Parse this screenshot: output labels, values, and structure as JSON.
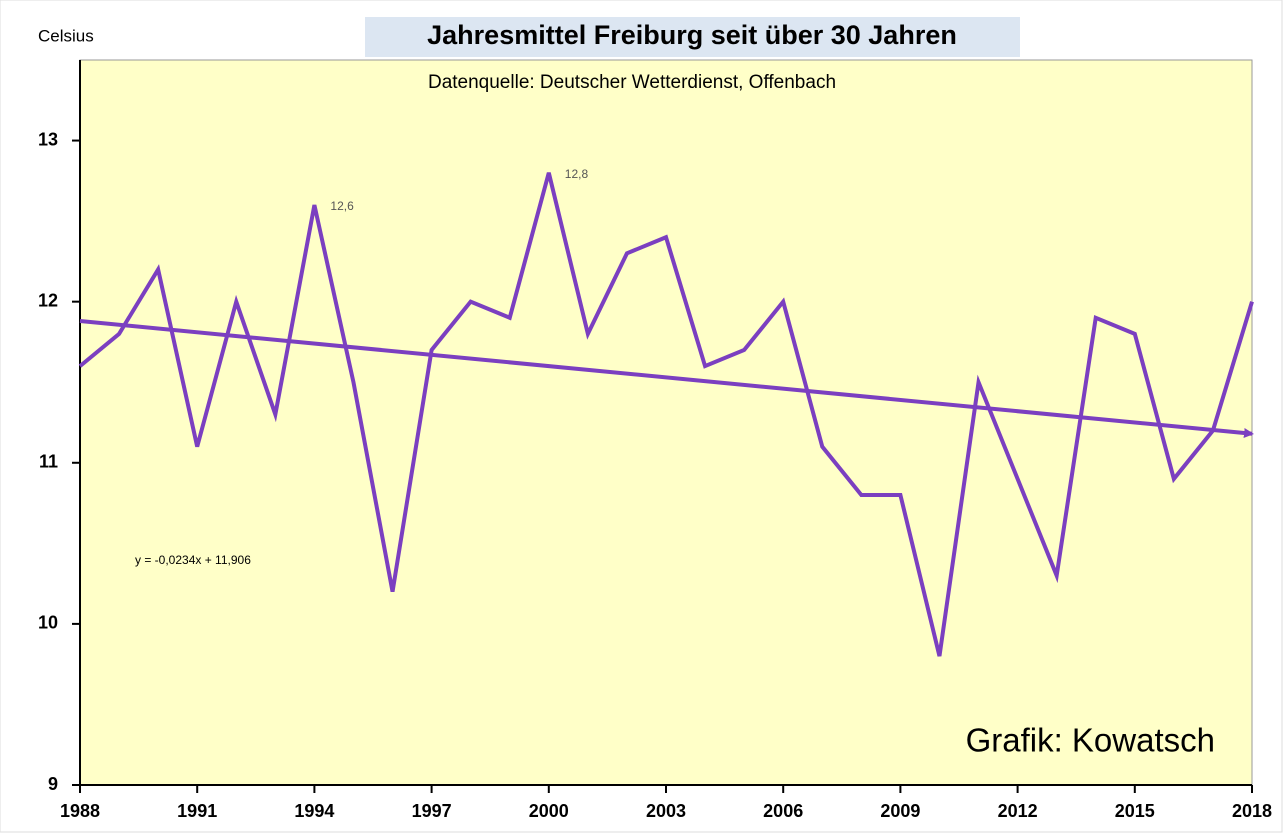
{
  "chart_data": {
    "type": "line",
    "title": "Jahresmittel Freiburg seit über 30 Jahren",
    "subtitle": "Datenquelle: Deutscher Wetterdienst, Offenbach",
    "y_label": "Celsius",
    "annotation": "Grafik: Kowatsch",
    "x": [
      1988,
      1989,
      1990,
      1991,
      1992,
      1993,
      1994,
      1995,
      1996,
      1997,
      1998,
      1999,
      2000,
      2001,
      2002,
      2003,
      2004,
      2005,
      2006,
      2007,
      2008,
      2009,
      2010,
      2011,
      2012,
      2013,
      2014,
      2015,
      2016,
      2017,
      2018
    ],
    "series": [
      {
        "color": "#7b3fc0",
        "values": [
          11.6,
          11.8,
          12.2,
          11.1,
          12.0,
          11.3,
          12.6,
          11.5,
          10.2,
          11.7,
          12.0,
          11.9,
          12.8,
          11.8,
          12.3,
          12.4,
          11.6,
          11.7,
          12.0,
          11.1,
          10.8,
          10.8,
          9.8,
          11.5,
          10.9,
          10.3,
          11.9,
          11.8,
          10.9,
          11.2,
          12.0
        ],
        "value_labels": [
          null,
          null,
          null,
          null,
          null,
          null,
          "12,6",
          null,
          null,
          null,
          null,
          null,
          "12,8",
          null,
          null,
          null,
          null,
          null,
          null,
          null,
          null,
          null,
          null,
          null,
          null,
          null,
          null,
          null,
          null,
          null,
          null
        ]
      }
    ],
    "trendline": {
      "label": "y = -0,0234x + 11,906",
      "x": [
        1988,
        2018
      ],
      "values": [
        11.88,
        11.18
      ],
      "color": "#7b3fc0"
    },
    "xlim": [
      1988,
      2018
    ],
    "xticks": [
      1988,
      1991,
      1994,
      1997,
      2000,
      2003,
      2006,
      2009,
      2012,
      2015,
      2018
    ],
    "ylim": [
      9,
      13.5
    ],
    "yticks": [
      9,
      10,
      11,
      12,
      13
    ],
    "grid": false
  }
}
